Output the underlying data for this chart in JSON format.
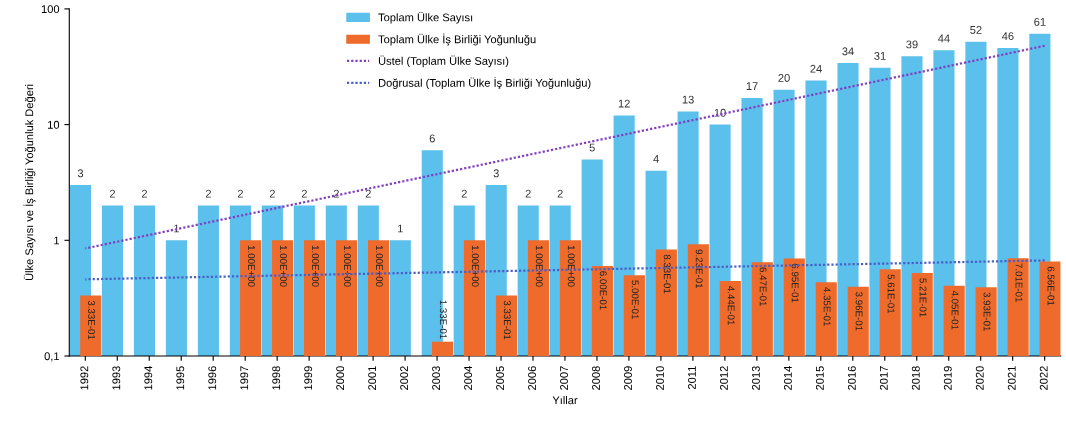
{
  "chart_data": {
    "type": "bar",
    "xlabel": "Yıllar",
    "ylabel": "Ülke Sayısı ve İş Birliği Yoğunluk Değeri",
    "categories": [
      "1992",
      "1993",
      "1994",
      "1995",
      "1996",
      "1997",
      "1998",
      "1999",
      "2000",
      "2001",
      "2002",
      "2003",
      "2004",
      "2005",
      "2006",
      "2007",
      "2008",
      "2009",
      "2010",
      "2011",
      "2012",
      "2013",
      "2014",
      "2015",
      "2016",
      "2017",
      "2018",
      "2019",
      "2020",
      "2021",
      "2022"
    ],
    "log": "y",
    "ylim": [
      0.1,
      100
    ],
    "yticks": [
      {
        "value": 0.1,
        "label": "0,1"
      },
      1,
      10,
      100
    ],
    "grid": false,
    "legend": "top",
    "series": [
      {
        "name": "Toplam Ülke Sayısı",
        "color": "#5bc0eb",
        "values": [
          3,
          2,
          2,
          1,
          2,
          2,
          2,
          2,
          2,
          2,
          1,
          6,
          2,
          3,
          2,
          2,
          5,
          12,
          4,
          13,
          10,
          17,
          20,
          24,
          34,
          31,
          39,
          44,
          52,
          46,
          61
        ],
        "value_labels": [
          "3",
          "2",
          "2",
          "1",
          "2",
          "2",
          "2",
          "2",
          "2",
          "2",
          "1",
          "6",
          "2",
          "3",
          "2",
          "2",
          "5",
          "12",
          "4",
          "13",
          "10",
          "17",
          "20",
          "24",
          "34",
          "31",
          "39",
          "44",
          "52",
          "46",
          "61"
        ]
      },
      {
        "name": "Toplam Ülke İş Birliği Yoğunluğu",
        "color": "#ee6b2b",
        "values": [
          0.333,
          null,
          null,
          null,
          null,
          1,
          1,
          1,
          1,
          1,
          null,
          0.133,
          1,
          0.333,
          1,
          1,
          0.6,
          0.5,
          0.833,
          0.923,
          0.444,
          0.647,
          0.695,
          0.435,
          0.396,
          0.561,
          0.521,
          0.405,
          0.393,
          0.701,
          0.656
        ],
        "value_labels": [
          "3.33E-01",
          null,
          null,
          null,
          null,
          "1.00E+00",
          "1.00E+00",
          "1.00E+00",
          "1.00E+00",
          "1.00E+00",
          null,
          "1.33E-01",
          "1.00E+00",
          "3.33E-01",
          "1.00E+00",
          "1.00E+00",
          "6.00E-01",
          "5.00E-01",
          "8.33E-01",
          "9.23E-01",
          "4.44E-01",
          "6.47E-01",
          "6.95E-01",
          "4.35E-01",
          "3.96E-01",
          "5.61E-01",
          "5.21E-01",
          "4.05E-01",
          "3.93E-01",
          "7.01E-01",
          "6.56E-01"
        ]
      },
      {
        "name": "Üstel (Toplam Ülke Sayısı)",
        "type": "line",
        "color": "#8040c0",
        "line_style": "dotted",
        "values": [
          0.85,
          null,
          null,
          null,
          null,
          null,
          null,
          null,
          null,
          null,
          null,
          null,
          null,
          null,
          null,
          null,
          null,
          null,
          null,
          null,
          null,
          null,
          null,
          null,
          null,
          null,
          null,
          null,
          null,
          null,
          48
        ]
      },
      {
        "name": "Doğrusal (Toplam Ülke İş Birliği Yoğunluğu)",
        "type": "line",
        "color": "#4a5fc8",
        "line_style": "dotted",
        "values": [
          0.46,
          null,
          null,
          null,
          null,
          null,
          null,
          null,
          null,
          null,
          null,
          null,
          null,
          null,
          null,
          null,
          null,
          null,
          null,
          null,
          null,
          null,
          null,
          null,
          null,
          null,
          null,
          null,
          null,
          null,
          0.67
        ]
      }
    ]
  }
}
